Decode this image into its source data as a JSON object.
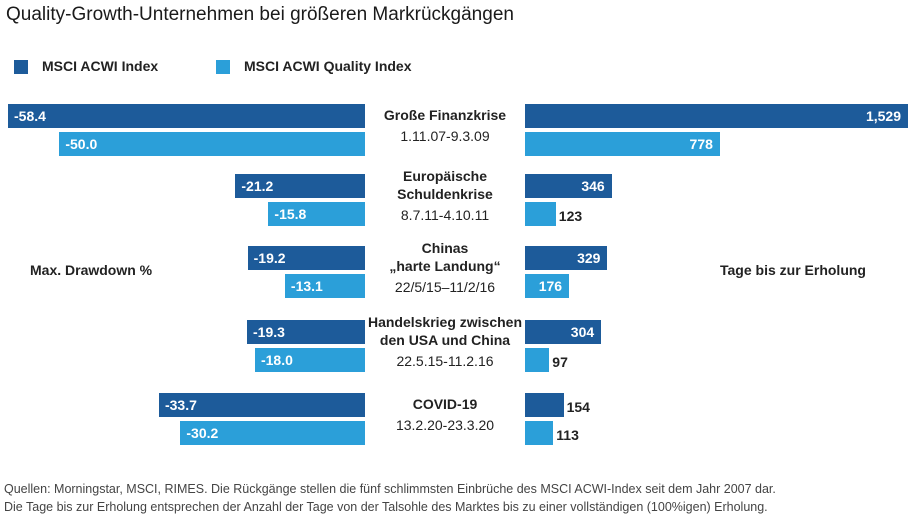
{
  "title": "Quality-Growth-Unternehmen bei größeren Markrückgängen",
  "chart_data": [
    {
      "type": "bar",
      "orientation": "horizontal",
      "xlabel": "Max. Drawdown %",
      "categories": [
        "Große Finanzkrise",
        "Europäische\nSchuldenkrise",
        "Chinas\n„harte Landung“",
        "Handelskrieg zwischen\nden USA und China",
        "COVID-19"
      ],
      "category_dates": [
        "1.11.07-9.3.09",
        "8.7.11-4.10.11",
        "22/5/15–11/2/16",
        "22.5.15-11.2.16",
        "13.2.20-23.3.20"
      ],
      "series": [
        {
          "name": "MSCI ACWI Index",
          "color": "#1d5b9a",
          "values": [
            -58.4,
            -21.2,
            -19.2,
            -19.3,
            -33.7
          ]
        },
        {
          "name": "MSCI ACWI Quality Index",
          "color": "#2b9fd9",
          "values": [
            -50.0,
            -15.8,
            -13.1,
            -18.0,
            -30.2
          ],
          "value_labels": [
            "-50.0",
            "-15.8",
            "-13.1",
            "-18.0",
            "-30.2"
          ]
        }
      ]
    },
    {
      "type": "bar",
      "orientation": "horizontal",
      "xlabel": "Tage bis zur Erholung",
      "series": [
        {
          "color": "#1d5b9a",
          "values": [
            1529,
            346,
            329,
            304,
            154
          ],
          "value_labels": [
            "1,529",
            "346",
            "329",
            "304",
            "154"
          ]
        },
        {
          "color": "#2b9fd9",
          "values": [
            778,
            123,
            176,
            97,
            113
          ]
        }
      ]
    }
  ],
  "source": [
    "Quellen: Morningstar, MSCI, RIMES. Die Rückgänge stellen die fünf schlimmsten Einbrüche des MSCI ACWI-Index seit dem Jahr 2007 dar.",
    "Die Tage bis zur Erholung entsprechen der Anzahl der Tage von der Talsohle des Marktes bis zu einer vollständigen (100%igen) Erholung."
  ]
}
